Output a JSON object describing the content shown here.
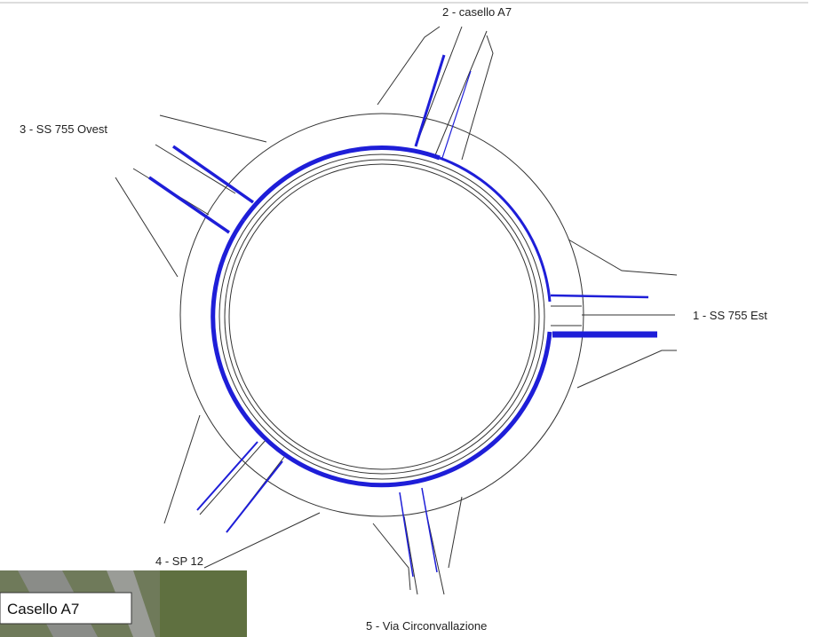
{
  "labels": {
    "arm_2": "2 - casello A7",
    "arm_3": "3 - SS 755 Ovest",
    "arm_1": "1 - SS 755 Est",
    "arm_4": "4 - SP 12",
    "arm_5": "5 - Via Circonvallazione"
  },
  "inset": {
    "label": "Casello A7"
  }
}
